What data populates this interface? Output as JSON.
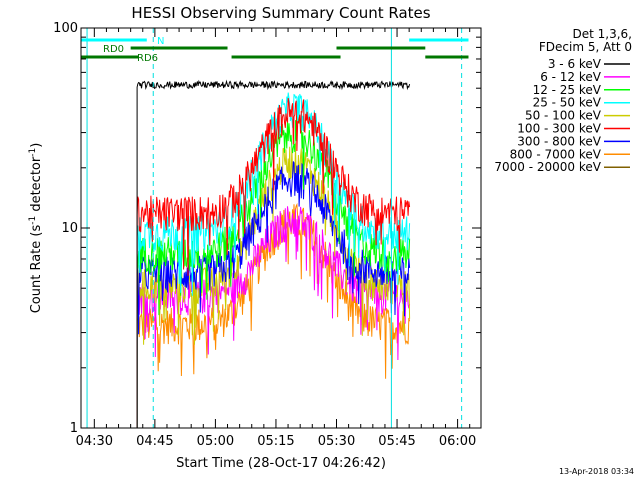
{
  "chart_data": {
    "type": "line",
    "title": "HESSI Observing Summary Count Rates",
    "xlabel": "Start Time (28-Oct-17 04:26:42)",
    "ylabel": "Count Rate (s",
    "ylabel_sup": "-1",
    "ylabel_tail": " detector",
    "ylabel_tail_sup": "-1",
    "ylabel_close": ")",
    "yscale": "log",
    "ylim": [
      1,
      100
    ],
    "xlim_minutes": [
      26.7,
      125.8
    ],
    "y_ticks": [
      {
        "value": 1,
        "label": "1"
      },
      {
        "value": 10,
        "label": "10"
      },
      {
        "value": 100,
        "label": "100"
      }
    ],
    "x_ticks": [
      {
        "minute": 30,
        "label": "04:30"
      },
      {
        "minute": 45,
        "label": "04:45"
      },
      {
        "minute": 60,
        "label": "05:00"
      },
      {
        "minute": 75,
        "label": "05:15"
      },
      {
        "minute": 90,
        "label": "05:30"
      },
      {
        "minute": 105,
        "label": "05:45"
      },
      {
        "minute": 120,
        "label": "06:00"
      }
    ],
    "data_start": 40.6,
    "data_end": 108.2,
    "flare_peak": 79.5,
    "series": [
      {
        "name": "3 - 6 keV",
        "color": "#000000",
        "values": [
          52,
          52,
          52,
          52
        ]
      },
      {
        "name": "6 - 12 keV",
        "color": "#ff00ff",
        "values": [
          4.6,
          11,
          4.6,
          4.6
        ]
      },
      {
        "name": "12 - 25 keV",
        "color": "#00ff00",
        "values": [
          7.5,
          30,
          7.5,
          7.5
        ]
      },
      {
        "name": "25 - 50 keV",
        "color": "#00ffff",
        "values": [
          9.5,
          40,
          9.5,
          9.5
        ]
      },
      {
        "name": "50 - 100 keV",
        "color": "#cccc00",
        "values": [
          5.2,
          22,
          5.2,
          5.2
        ]
      },
      {
        "name": "100 - 300 keV",
        "color": "#ff0000",
        "values": [
          12,
          38,
          12,
          12
        ]
      },
      {
        "name": "300 - 800 keV",
        "color": "#0000ff",
        "values": [
          6,
          18,
          6,
          6
        ]
      },
      {
        "name": "800 - 7000 keV",
        "color": "#ff8c00",
        "values": [
          3.3,
          11,
          3.3,
          3.3
        ]
      },
      {
        "name": "7000 - 20000 keV",
        "color": "#806000",
        "values": []
      }
    ],
    "series_time_points": [
      40.6,
      79.5,
      100,
      108.2
    ],
    "vlines_solid": [
      {
        "minute": 28.2,
        "color": "#00e0e0"
      },
      {
        "minute": 103.6,
        "color": "#00e0e0"
      }
    ],
    "vlines_dashed": [
      {
        "minute": 44.6,
        "color": "#00e0e0"
      },
      {
        "minute": 121.0,
        "color": "#00e0e0"
      }
    ],
    "flag_bars": [
      {
        "label": "N",
        "color": "#00ffff",
        "y": 90,
        "segments": [
          [
            26.7,
            43
          ],
          [
            108,
            122.7
          ]
        ]
      },
      {
        "label": "RD0",
        "color": "#007700",
        "y": 80,
        "segments": [
          [
            39,
            63
          ],
          [
            90,
            112
          ]
        ]
      },
      {
        "label": "RD6",
        "color": "#007700",
        "y": 70,
        "segments": [
          [
            26.7,
            41
          ],
          [
            64,
            91
          ],
          [
            112,
            122.7
          ]
        ]
      }
    ],
    "legend_header": [
      "Det 1,3,6,",
      "FDecim 5, Att 0"
    ],
    "legend_position": "right",
    "timestamp": "13-Apr-2018 03:34"
  }
}
